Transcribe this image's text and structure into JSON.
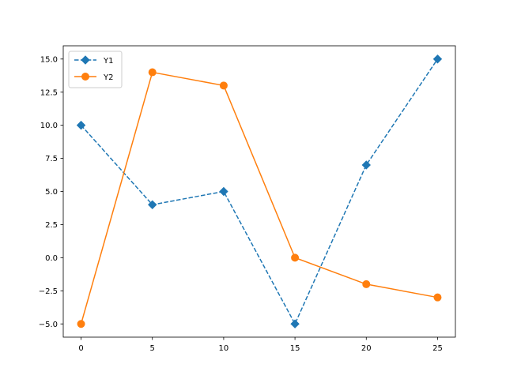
{
  "chart_data": {
    "type": "line",
    "title": "",
    "xlabel": "",
    "ylabel": "",
    "x": [
      0,
      5,
      10,
      15,
      20,
      25
    ],
    "xlim": [
      -1.25,
      26.25
    ],
    "ylim": [
      -6.0,
      16.0
    ],
    "xticks": [
      0,
      5,
      10,
      15,
      20,
      25
    ],
    "xtick_labels": [
      "0",
      "5",
      "10",
      "15",
      "20",
      "25"
    ],
    "yticks": [
      -5,
      -2.5,
      0,
      2.5,
      5,
      7.5,
      10,
      12.5,
      15
    ],
    "ytick_labels": [
      "−5.0",
      "−2.5",
      "0.0",
      "2.5",
      "5.0",
      "7.5",
      "10.0",
      "12.5",
      "15.0"
    ],
    "grid": false,
    "legend_position": "top-left",
    "series": [
      {
        "name": "Y1",
        "values": [
          10,
          4,
          5,
          -5,
          7,
          15
        ],
        "color": "#1f77b4",
        "linestyle": "dashed",
        "marker": "diamond"
      },
      {
        "name": "Y2",
        "values": [
          -5,
          14,
          13,
          0,
          -2,
          -3
        ],
        "color": "#ff7f0e",
        "linestyle": "solid",
        "marker": "circle"
      }
    ]
  }
}
